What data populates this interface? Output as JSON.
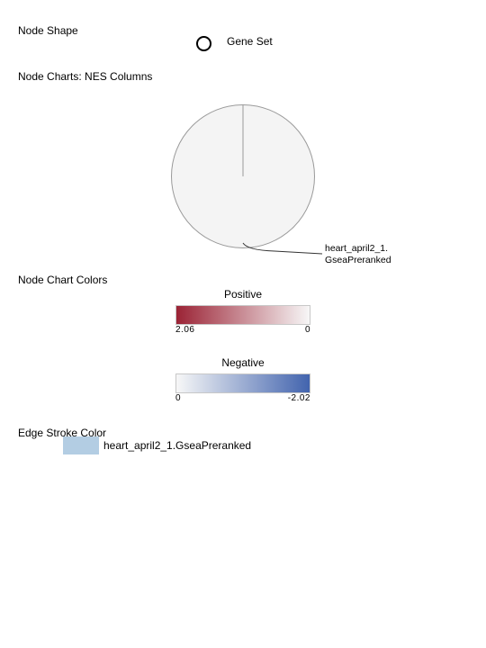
{
  "node_shape": {
    "title": "Node Shape",
    "shape_icon": "circle-outline-icon",
    "label": "Gene Set"
  },
  "node_charts": {
    "title": "Node Charts: NES Columns",
    "pie_label_line1": "heart_april2_1.",
    "pie_label_line2": "GseaPreranked",
    "pie_fill": "#f4f4f4",
    "pie_stroke": "#9a9a9a"
  },
  "node_chart_colors": {
    "title": "Node Chart Colors",
    "positive": {
      "title": "Positive",
      "min_label": "2.06",
      "max_label": "0",
      "color_start": "#9b2335",
      "color_end": "#f7f7f7"
    },
    "negative": {
      "title": "Negative",
      "min_label": "0",
      "max_label": "-2.02",
      "color_start": "#f7f7f7",
      "color_end": "#4264ae"
    }
  },
  "edge_stroke": {
    "title": "Edge Stroke Color",
    "swatch_color": "#b3cde3",
    "label": "heart_april2_1.GseaPreranked"
  }
}
